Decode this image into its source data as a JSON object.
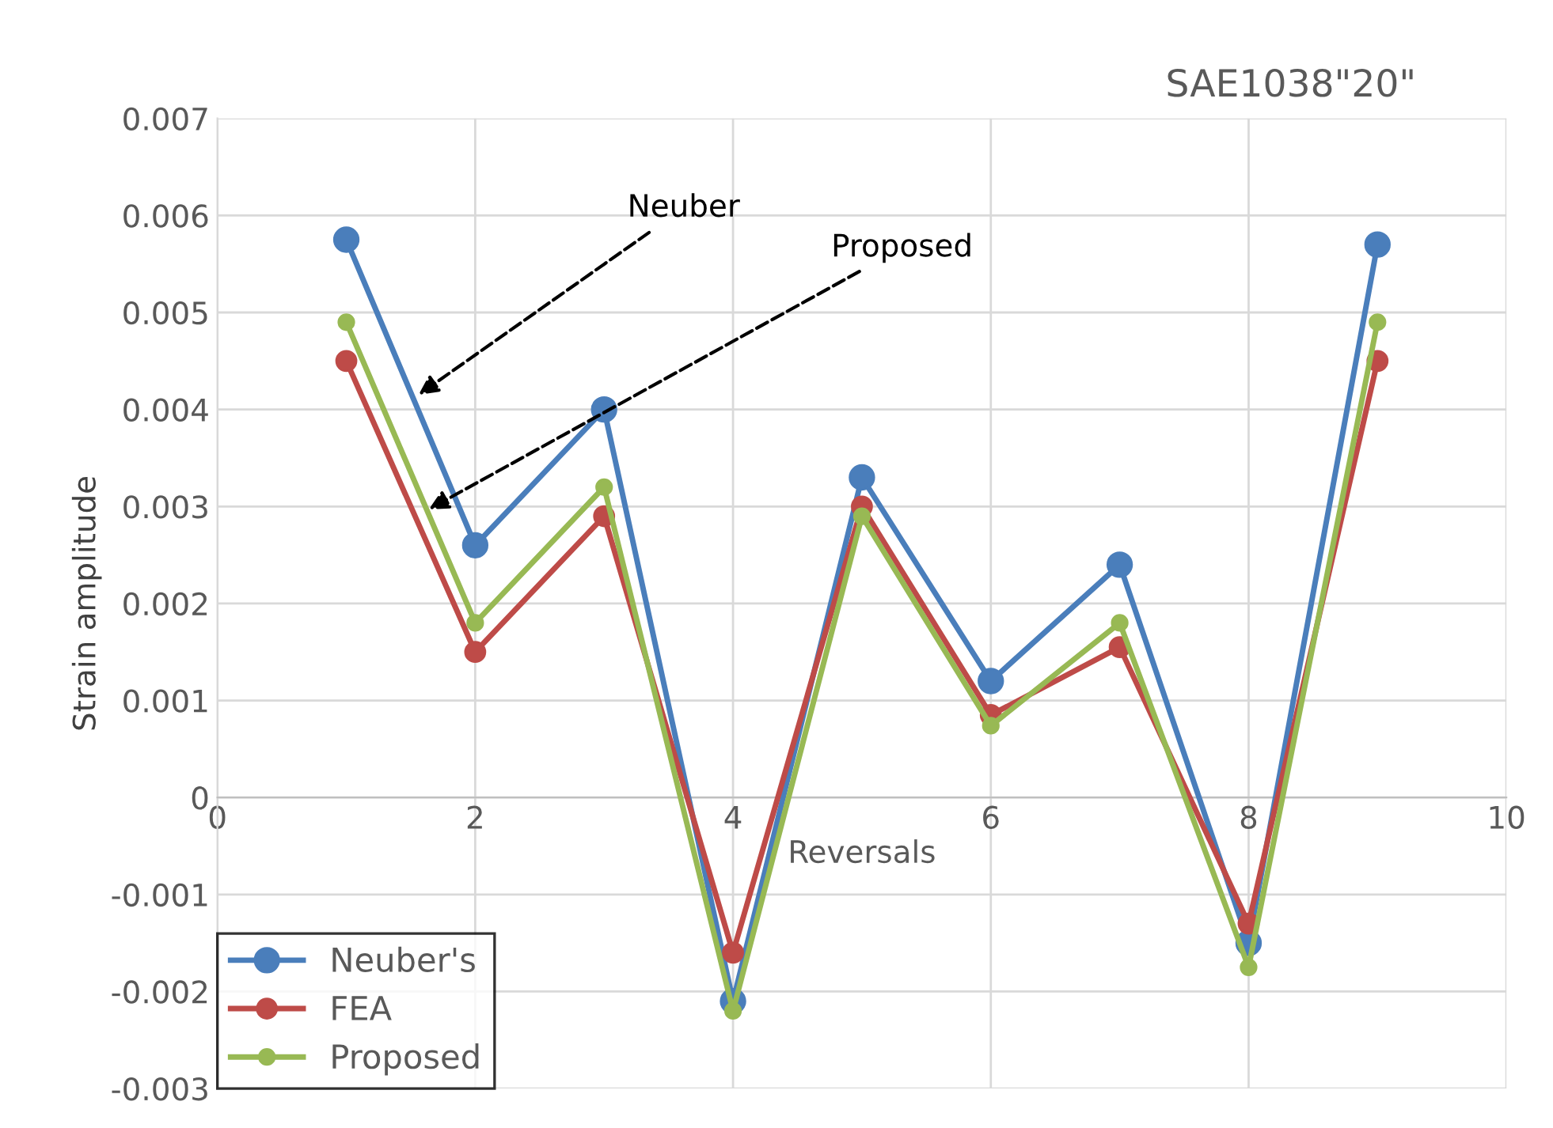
{
  "chart_data": {
    "type": "line",
    "title": "SAE1038\"20\"",
    "xlabel": "Reversals",
    "ylabel": "Strain amplitude",
    "x": [
      1,
      2,
      3,
      4,
      5,
      6,
      7,
      8,
      9
    ],
    "series": [
      {
        "name": "Neuber's",
        "color": "#4a7ebb",
        "values": [
          0.00575,
          0.0026,
          0.004,
          -0.0021,
          0.0033,
          0.0012,
          0.0024,
          -0.0015,
          0.0057
        ]
      },
      {
        "name": "FEA",
        "color": "#be4b48",
        "values": [
          0.0045,
          0.0015,
          0.0029,
          -0.0016,
          0.003,
          0.00085,
          0.00155,
          -0.0013,
          0.0045
        ]
      },
      {
        "name": "Proposed",
        "color": "#98b954",
        "values": [
          0.0049,
          0.0018,
          0.0032,
          -0.0022,
          0.0029,
          0.00074,
          0.0018,
          -0.00175,
          0.0049
        ]
      }
    ],
    "annotations": [
      {
        "text": "Neuber",
        "x": 1.56,
        "y": 0.00415
      },
      {
        "text": "Proposed",
        "x": 1.64,
        "y": 0.00297
      }
    ],
    "xlim": [
      0,
      10
    ],
    "xticks": [
      0,
      2,
      4,
      6,
      8,
      10
    ],
    "ylim": [
      -0.003,
      0.007
    ],
    "yticks": [
      -0.003,
      -0.002,
      -0.001,
      0,
      0.001,
      0.002,
      0.003,
      0.004,
      0.005,
      0.006,
      0.007
    ],
    "grid": true,
    "legend": "bottom left",
    "marker": "circle",
    "line_style": "solid"
  }
}
